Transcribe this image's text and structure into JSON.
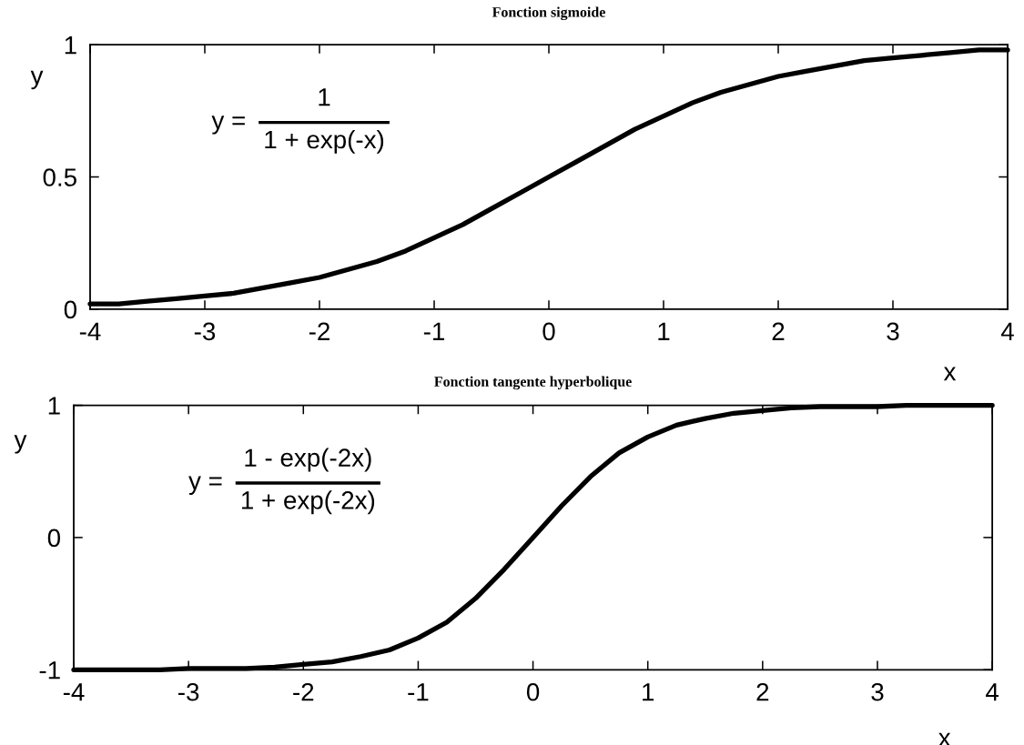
{
  "chart_data": [
    {
      "type": "line",
      "title": "Fonction sigmoide",
      "xlabel": "x",
      "ylabel": "y",
      "annotations": [
        "y =",
        "1",
        "1 + exp(-x)"
      ],
      "x": [
        -4,
        -3.75,
        -3.5,
        -3.25,
        -3,
        -2.75,
        -2.5,
        -2.25,
        -2,
        -1.75,
        -1.5,
        -1.25,
        -1,
        -0.75,
        -0.5,
        -0.25,
        0,
        0.25,
        0.5,
        0.75,
        1,
        1.25,
        1.5,
        1.75,
        2,
        2.25,
        2.5,
        2.75,
        3,
        3.25,
        3.5,
        3.75,
        4
      ],
      "series": [
        {
          "color": "#000000",
          "values": [
            0.02,
            0.02,
            0.03,
            0.04,
            0.05,
            0.06,
            0.08,
            0.1,
            0.12,
            0.15,
            0.18,
            0.22,
            0.27,
            0.32,
            0.38,
            0.44,
            0.5,
            0.56,
            0.62,
            0.68,
            0.73,
            0.78,
            0.82,
            0.85,
            0.88,
            0.9,
            0.92,
            0.94,
            0.95,
            0.96,
            0.97,
            0.98,
            0.98
          ]
        }
      ],
      "xlim": [
        -4,
        4
      ],
      "ylim": [
        0,
        1
      ],
      "xticks": [
        -4,
        -3,
        -2,
        -1,
        0,
        1,
        2,
        3,
        4
      ],
      "yticks": [
        0,
        0.5,
        1
      ],
      "line_style": "solid"
    },
    {
      "type": "line",
      "title": "Fonction tangente hyperbolique",
      "xlabel": "x",
      "ylabel": "y",
      "annotations": [
        "y =",
        "1 - exp(-2x)",
        "1 + exp(-2x)"
      ],
      "x": [
        -4,
        -3.75,
        -3.5,
        -3.25,
        -3,
        -2.75,
        -2.5,
        -2.25,
        -2,
        -1.75,
        -1.5,
        -1.25,
        -1,
        -0.75,
        -0.5,
        -0.25,
        0,
        0.25,
        0.5,
        0.75,
        1,
        1.25,
        1.5,
        1.75,
        2,
        2.25,
        2.5,
        2.75,
        3,
        3.25,
        3.5,
        3.75,
        4
      ],
      "series": [
        {
          "color": "#000000",
          "values": [
            -1,
            -1,
            -1,
            -1,
            -0.99,
            -0.99,
            -0.99,
            -0.98,
            -0.96,
            -0.94,
            -0.9,
            -0.85,
            -0.76,
            -0.64,
            -0.46,
            -0.24,
            0,
            0.24,
            0.46,
            0.64,
            0.76,
            0.85,
            0.9,
            0.94,
            0.96,
            0.98,
            0.99,
            0.99,
            0.99,
            1,
            1,
            1,
            1
          ]
        }
      ],
      "xlim": [
        -4,
        4
      ],
      "ylim": [
        -1,
        1
      ],
      "xticks": [
        -4,
        -3,
        -2,
        -1,
        0,
        1,
        2,
        3,
        4
      ],
      "yticks": [
        -1,
        0,
        1
      ],
      "line_style": "solid"
    }
  ]
}
